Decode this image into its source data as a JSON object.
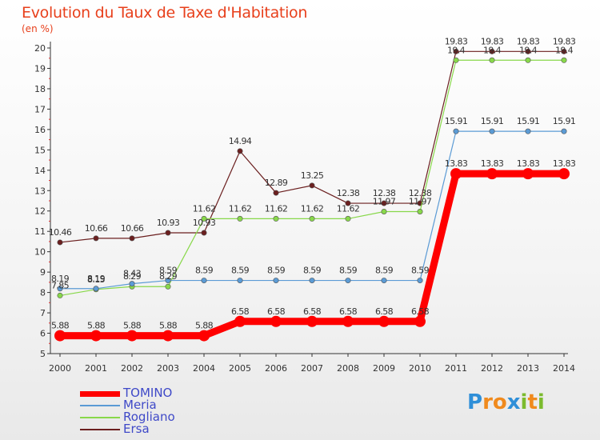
{
  "title": "Evolution du Taux de Taxe d'Habitation",
  "subtitle": "(en %)",
  "logo": {
    "text": "Proxiti",
    "letters": [
      {
        "ch": "P",
        "color": "#2f8fd8"
      },
      {
        "ch": "r",
        "color": "#f08a1d"
      },
      {
        "ch": "o",
        "color": "#f08a1d"
      },
      {
        "ch": "x",
        "color": "#2f8fd8"
      },
      {
        "ch": "i",
        "color": "#7cbb2e"
      },
      {
        "ch": "t",
        "color": "#f08a1d"
      },
      {
        "ch": "i",
        "color": "#7cbb2e"
      }
    ]
  },
  "chart_data": {
    "type": "line",
    "title": "Evolution du Taux de Taxe d'Habitation",
    "ylabel": "(en %)",
    "x": [
      "2000",
      "2001",
      "2002",
      "2003",
      "2004",
      "2005",
      "2006",
      "2007",
      "2008",
      "2009",
      "2010",
      "2011",
      "2012",
      "2013",
      "2014"
    ],
    "yticks": [
      "5",
      "6",
      "7",
      "8",
      "9",
      "10",
      "11",
      "12",
      "13",
      "14",
      "15",
      "16",
      "17",
      "18",
      "19",
      "20"
    ],
    "ylim": [
      5,
      20
    ],
    "grid": false,
    "legend_position": "bottom-left",
    "series": [
      {
        "name": "TOMINO",
        "color": "#ff0000",
        "values": [
          5.88,
          5.88,
          5.88,
          5.88,
          5.88,
          6.58,
          6.58,
          6.58,
          6.58,
          6.58,
          6.58,
          13.83,
          13.83,
          13.83,
          13.83
        ],
        "labels": [
          "5.88",
          "5.88",
          "5.88",
          "5.88",
          "5.88",
          "6.58",
          "6.58",
          "6.58",
          "6.58",
          "6.58",
          "6.58",
          "13.83",
          "13.83",
          "13.83",
          "13.83"
        ]
      },
      {
        "name": "Meria",
        "color": "#5b9bd5",
        "values": [
          8.19,
          8.19,
          8.43,
          8.59,
          8.59,
          8.59,
          8.59,
          8.59,
          8.59,
          8.59,
          8.59,
          15.91,
          15.91,
          15.91,
          15.91
        ],
        "labels": [
          "8.19",
          "8.19",
          "8.43",
          "8.59",
          "8.59",
          "8.59",
          "8.59",
          "8.59",
          "8.59",
          "8.59",
          "8.59",
          "15.91",
          "15.91",
          "15.91",
          "15.91"
        ]
      },
      {
        "name": "Rogliano",
        "color": "#88d84a",
        "values": [
          7.85,
          8.15,
          8.29,
          8.29,
          11.62,
          11.62,
          11.62,
          11.62,
          11.62,
          11.97,
          11.97,
          19.4,
          19.4,
          19.4,
          19.4
        ],
        "labels": [
          "7.85",
          "8.15",
          "8.29",
          "8.29",
          "11.62",
          "11.62",
          "11.62",
          "11.62",
          "11.62",
          "11.97",
          "11.97",
          "19.4",
          "19.4",
          "19.4",
          "19.4"
        ]
      },
      {
        "name": "Ersa",
        "color": "#6b1f1f",
        "values": [
          10.46,
          10.66,
          10.66,
          10.93,
          10.93,
          14.94,
          12.89,
          13.25,
          12.38,
          12.38,
          12.38,
          19.83,
          19.83,
          19.83,
          19.83
        ],
        "labels": [
          "10.46",
          "10.66",
          "10.66",
          "10.93",
          "10.93",
          "14.94",
          "12.89",
          "13.25",
          "12.38",
          "12.38",
          "12.38",
          "19.83",
          "19.83",
          "19.83",
          "19.83"
        ]
      }
    ]
  }
}
